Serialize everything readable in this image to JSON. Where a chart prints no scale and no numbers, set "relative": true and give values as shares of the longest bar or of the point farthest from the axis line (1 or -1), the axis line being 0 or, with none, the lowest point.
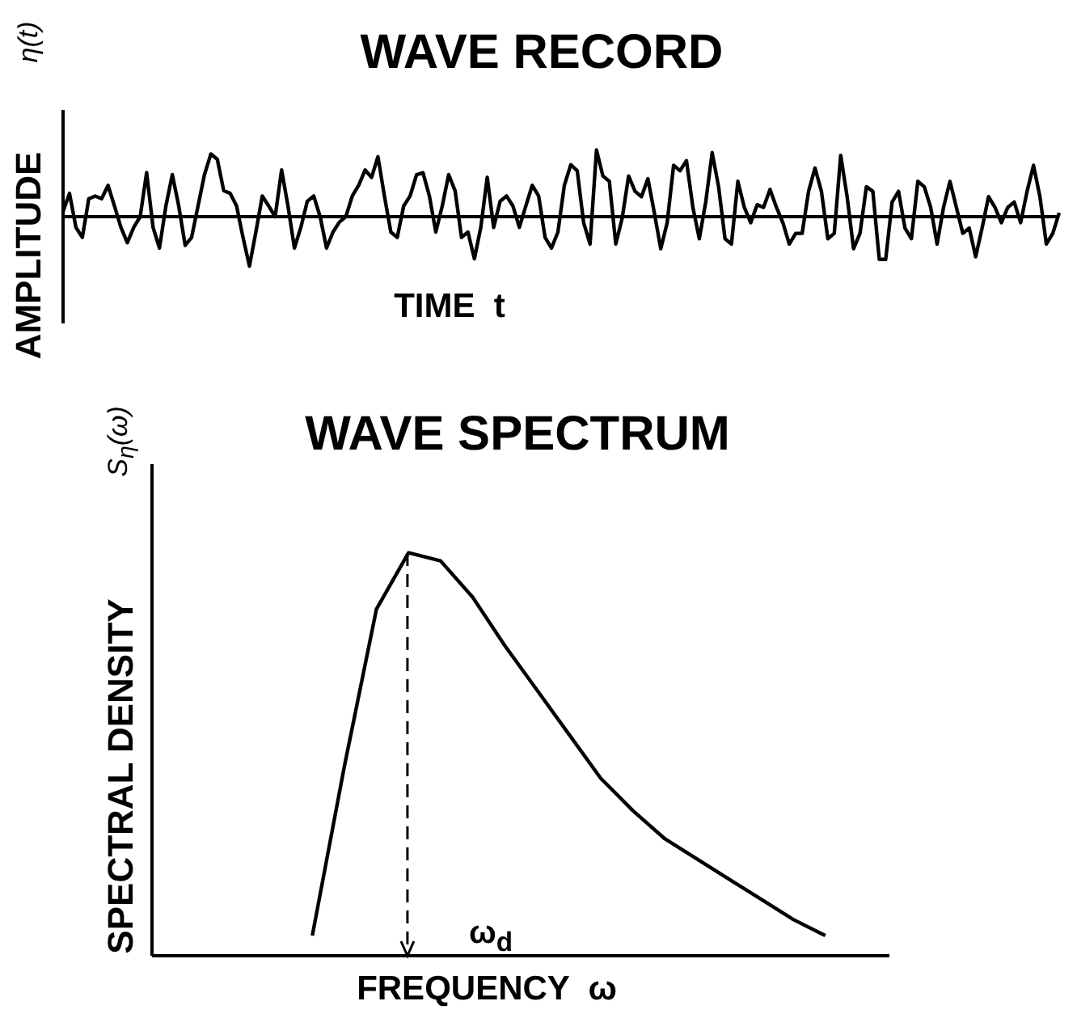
{
  "chart_data": [
    {
      "type": "line",
      "title": "WAVE RECORD",
      "xlabel": "TIME  t",
      "ylabel": "AMPLITUDE",
      "annotations": [
        "η(t)"
      ],
      "relative": true,
      "categories": [
        null,
        null,
        null,
        null,
        null,
        null,
        null,
        null,
        null,
        null,
        null,
        null,
        null,
        null,
        null,
        null,
        null,
        null,
        null,
        null,
        null,
        null,
        null,
        null,
        null,
        null,
        null,
        null,
        null,
        null,
        null,
        null,
        null,
        null,
        null,
        null,
        null,
        null,
        null,
        null,
        null,
        null,
        null,
        null,
        null,
        null,
        null,
        null,
        null,
        null,
        null,
        null,
        null,
        null,
        null,
        null,
        null,
        null,
        null,
        null,
        null,
        null,
        null,
        null,
        null,
        null,
        null,
        null,
        null,
        null,
        null,
        null,
        null,
        null,
        null,
        null,
        null,
        null,
        null,
        null,
        null,
        null,
        null,
        null,
        null,
        null,
        null,
        null,
        null,
        null,
        null,
        null,
        null,
        null,
        null,
        null,
        null,
        null,
        null,
        null,
        null,
        null,
        null,
        null,
        null,
        null,
        null,
        null,
        null,
        null,
        null,
        null,
        null,
        null,
        null,
        null,
        null,
        null,
        null,
        null,
        null,
        null,
        null,
        null,
        null,
        null,
        null,
        null,
        null,
        null,
        null,
        null,
        null,
        null,
        null,
        null,
        null,
        null,
        null,
        null,
        null,
        null,
        null,
        null,
        null,
        null,
        null,
        null,
        null,
        null,
        null,
        null,
        null,
        null,
        null,
        null
      ],
      "series": [
        {
          "color": "#000000",
          "values": [
            0.08,
            0.35,
            -0.16,
            -0.31,
            0.27,
            0.31,
            0.27,
            0.47,
            0.16,
            -0.16,
            -0.39,
            -0.16,
            0,
            0.66,
            -0.16,
            -0.47,
            0.16,
            0.63,
            0.16,
            -0.43,
            -0.31,
            0.16,
            0.63,
            0.94,
            0.86,
            0.39,
            0.35,
            0.16,
            -0.31,
            -0.74,
            -0.23,
            0.31,
            0.16,
            0,
            0.7,
            0.16,
            -0.47,
            -0.16,
            0.23,
            0.31,
            0,
            -0.47,
            -0.23,
            -0.08,
            0,
            0.31,
            0.47,
            0.7,
            0.59,
            0.9,
            0.31,
            -0.23,
            -0.31,
            0.16,
            0.31,
            0.63,
            0.66,
            0.31,
            -0.23,
            0.16,
            0.63,
            0.39,
            -0.31,
            -0.23,
            -0.63,
            -0.16,
            0.59,
            -0.16,
            0.23,
            0.31,
            0.16,
            -0.16,
            0.16,
            0.47,
            0.31,
            -0.31,
            -0.47,
            -0.23,
            0.47,
            0.78,
            0.69,
            -0.09,
            -0.41,
            1.0,
            0.61,
            0.53,
            -0.41,
            -0.02,
            0.61,
            0.38,
            0.3,
            0.57,
            0.06,
            -0.48,
            -0.09,
            0.77,
            0.69,
            0.84,
            0.14,
            -0.33,
            0.22,
            0.96,
            0.45,
            -0.33,
            -0.41,
            0.53,
            0.14,
            -0.09,
            0.18,
            0.14,
            0.41,
            0.14,
            -0.09,
            -0.41,
            -0.25,
            -0.25,
            0.38,
            0.73,
            0.38,
            -0.33,
            -0.25,
            0.92,
            0.3,
            -0.48,
            -0.25,
            0.45,
            0.38,
            -0.64,
            -0.64,
            0.22,
            0.38,
            -0.17,
            -0.33,
            0.53,
            0.45,
            0.14,
            -0.41,
            0.14,
            0.53,
            0.14,
            -0.25,
            -0.17,
            -0.6,
            -0.17,
            0.3,
            0.14,
            -0.09,
            0.14,
            0.22,
            -0.09,
            0.38,
            0.77,
            0.3,
            -0.41,
            -0.25,
            0.06
          ]
        }
      ]
    },
    {
      "type": "line",
      "title": "WAVE SPECTRUM",
      "xlabel": "FREQUENCY  ω",
      "ylabel": "SPECTRAL DENSITY",
      "annotations": [
        "S$_{η}$(ω)",
        "ω$_{d}$"
      ],
      "relative": true,
      "categories": [
        null,
        null,
        null,
        null,
        null,
        null,
        null,
        null,
        null,
        null,
        null,
        null,
        null,
        null,
        null,
        null,
        null,
        null,
        null,
        null,
        null,
        null,
        null,
        null
      ],
      "series": [
        {
          "color": "#000000",
          "values": [
            null,
            null,
            null,
            null,
            null,
            0.05,
            0.47,
            0.86,
            1.0,
            0.98,
            0.89,
            0.77,
            0.66,
            0.55,
            0.44,
            0.36,
            0.29,
            0.24,
            0.19,
            0.14,
            0.09,
            0.05,
            null,
            null
          ]
        }
      ]
    }
  ]
}
